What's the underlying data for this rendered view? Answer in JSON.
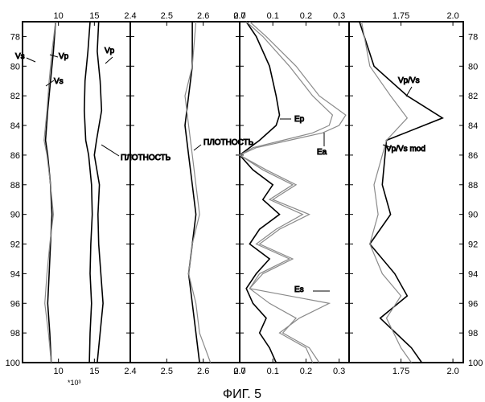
{
  "caption": "ФИГ. 5",
  "multiplier_label": "*10³",
  "chart_data": [
    {
      "type": "line",
      "panel": "velocities",
      "xlim": [
        5,
        20
      ],
      "top_ticks": [
        "10",
        "15"
      ],
      "bottom_ticks": [
        "10",
        "15"
      ],
      "ylim": [
        100,
        77
      ],
      "depth_ticks": [
        78,
        80,
        82,
        84,
        86,
        88,
        90,
        92,
        94,
        96,
        98,
        100
      ],
      "series": [
        {
          "name": "Vs",
          "kind": "smooth",
          "depth": [
            77,
            79,
            81,
            83,
            85,
            86,
            88,
            90,
            92,
            94,
            96,
            98,
            100
          ],
          "values": [
            9.6,
            9.3,
            8.9,
            8.5,
            8.2,
            8.5,
            8.9,
            9.1,
            8.9,
            8.7,
            8.5,
            8.8,
            9.0
          ]
        },
        {
          "name": "Vs",
          "kind": "raw",
          "depth": [
            77,
            79,
            81,
            83,
            85,
            86,
            88,
            90,
            92,
            94,
            96,
            98,
            100
          ],
          "values": [
            9.6,
            9.1,
            8.7,
            8.4,
            8.0,
            8.4,
            8.9,
            9.3,
            8.8,
            8.4,
            8.1,
            8.6,
            9.0
          ]
        },
        {
          "name": "Vp",
          "kind": "smooth",
          "depth": [
            77,
            79,
            81,
            83,
            85,
            86,
            88,
            90,
            92,
            94,
            96,
            98,
            100
          ],
          "values": [
            14.4,
            14.1,
            13.7,
            13.6,
            13.8,
            14.2,
            14.6,
            14.7,
            14.5,
            14.4,
            14.6,
            14.4,
            14.3
          ]
        },
        {
          "name": "Vp",
          "kind": "raw",
          "depth": [
            77,
            79,
            81,
            83,
            85,
            86,
            88,
            90,
            92,
            94,
            96,
            98,
            100
          ],
          "values": [
            15.6,
            15.4,
            15.8,
            16.0,
            15.3,
            15.0,
            15.7,
            15.5,
            15.6,
            15.9,
            16.2,
            15.8,
            15.4
          ]
        }
      ],
      "annotations": [
        "Vs",
        "Vp",
        "Vs",
        "Vp",
        "ПЛОТНОСТЬ"
      ]
    },
    {
      "type": "line",
      "panel": "density",
      "xlim": [
        2.4,
        2.7
      ],
      "top_ticks": [
        "2.4",
        "2.5",
        "2.6",
        "2.7"
      ],
      "bottom_ticks": [
        "2.4",
        "2.5",
        "2.6",
        "2.7"
      ],
      "ylim": [
        100,
        77
      ],
      "depth_ticks": [
        78,
        80,
        82,
        84,
        86,
        88,
        90,
        92,
        94,
        96,
        98,
        100
      ],
      "series": [
        {
          "name": "ПЛОТНОСТЬ",
          "kind": "smooth",
          "depth": [
            77,
            80,
            82,
            84,
            86,
            88,
            90,
            92,
            94,
            96,
            98,
            100
          ],
          "values": [
            2.57,
            2.57,
            2.56,
            2.55,
            2.56,
            2.57,
            2.58,
            2.57,
            2.56,
            2.57,
            2.58,
            2.59
          ]
        },
        {
          "name": "ПЛОТНОСТЬ",
          "kind": "raw",
          "depth": [
            77,
            80,
            82,
            84,
            86,
            88,
            90,
            92,
            94,
            96,
            98,
            100
          ],
          "values": [
            2.58,
            2.57,
            2.55,
            2.56,
            2.57,
            2.58,
            2.59,
            2.57,
            2.56,
            2.58,
            2.59,
            2.62
          ]
        }
      ],
      "annotations": [
        "ПЛОТНОСТЬ"
      ]
    },
    {
      "type": "line",
      "panel": "energy",
      "xlim": [
        0.0,
        0.33
      ],
      "top_ticks": [
        "0.0",
        "0.1",
        "0.2",
        "0.3"
      ],
      "bottom_ticks": [
        "0.0",
        "0.1",
        "0.2",
        "0.3"
      ],
      "ylim": [
        100,
        77
      ],
      "depth_ticks": [
        78,
        80,
        82,
        84,
        86,
        88,
        90,
        92,
        94,
        96,
        98,
        100
      ],
      "series": [
        {
          "name": "Ep",
          "depth": [
            77,
            78,
            80,
            82,
            83.3,
            84,
            85,
            86,
            87,
            88,
            89,
            90,
            91,
            92,
            93,
            94,
            95,
            96,
            97,
            98,
            99,
            100
          ],
          "values": [
            0.02,
            0.05,
            0.09,
            0.11,
            0.12,
            0.11,
            0.06,
            0.0,
            0.04,
            0.1,
            0.07,
            0.12,
            0.06,
            0.03,
            0.09,
            0.05,
            0.02,
            0.04,
            0.08,
            0.06,
            0.09,
            0.11
          ]
        },
        {
          "name": "Ea",
          "depth": [
            77,
            78,
            80,
            82,
            83.3,
            84,
            84.5,
            85,
            85.5,
            86,
            87,
            88,
            89,
            90,
            91,
            92,
            93,
            94,
            95,
            96,
            97,
            98,
            99,
            100
          ],
          "values": [
            0.03,
            0.08,
            0.17,
            0.24,
            0.32,
            0.3,
            0.25,
            0.15,
            0.05,
            0.0,
            0.08,
            0.17,
            0.1,
            0.21,
            0.12,
            0.06,
            0.16,
            0.07,
            0.03,
            0.09,
            0.17,
            0.13,
            0.21,
            0.24
          ]
        },
        {
          "name": "Es",
          "depth": [
            77,
            78,
            80,
            82,
            83.3,
            84,
            84.5,
            85,
            85.5,
            86,
            87,
            88,
            89,
            90,
            91,
            92,
            93,
            94,
            95,
            96,
            97,
            98,
            99,
            100
          ],
          "values": [
            0.02,
            0.07,
            0.15,
            0.22,
            0.28,
            0.27,
            0.22,
            0.13,
            0.04,
            0.0,
            0.07,
            0.16,
            0.09,
            0.19,
            0.11,
            0.05,
            0.15,
            0.06,
            0.03,
            0.27,
            0.18,
            0.12,
            0.2,
            0.22
          ]
        }
      ],
      "annotations": [
        "Ep",
        "Ea",
        "Es"
      ]
    },
    {
      "type": "line",
      "panel": "vp_vs",
      "xlim": [
        1.5,
        2.05
      ],
      "top_ticks": [
        "1.75",
        "2.0"
      ],
      "bottom_ticks": [
        "1.75",
        "2.0"
      ],
      "ylim": [
        100,
        77
      ],
      "depth_ticks": [
        78,
        80,
        82,
        84,
        86,
        88,
        90,
        92,
        94,
        96,
        98,
        100
      ],
      "series": [
        {
          "name": "Vp/Vs",
          "kind": "raw",
          "depth": [
            77,
            80,
            82,
            83.5,
            85,
            88,
            90,
            92,
            94,
            95.5,
            97,
            99,
            100
          ],
          "values": [
            1.55,
            1.62,
            1.78,
            1.95,
            1.68,
            1.66,
            1.7,
            1.6,
            1.72,
            1.78,
            1.65,
            1.8,
            1.85
          ]
        },
        {
          "name": "Vp/Vs mod",
          "kind": "smooth",
          "depth": [
            77,
            80,
            82,
            83.5,
            85,
            88,
            90,
            92,
            94,
            95.5,
            97,
            99,
            100
          ],
          "values": [
            1.56,
            1.6,
            1.7,
            1.78,
            1.68,
            1.62,
            1.64,
            1.6,
            1.66,
            1.75,
            1.68,
            1.75,
            1.8
          ]
        }
      ],
      "annotations": [
        "Vp/Vs",
        "Vp/Vs mod"
      ]
    }
  ]
}
